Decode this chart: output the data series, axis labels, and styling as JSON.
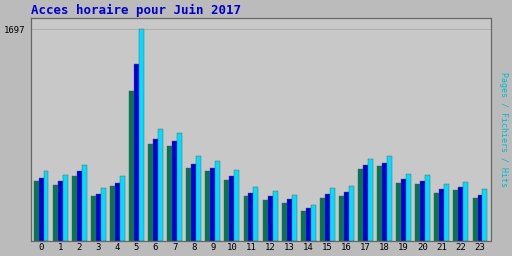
{
  "title": "Acces horaire pour Juin 2017",
  "ylabel": "Pages / Fichiers / Hits",
  "xlabel_values": [
    0,
    1,
    2,
    3,
    4,
    5,
    6,
    7,
    8,
    9,
    10,
    11,
    12,
    13,
    14,
    15,
    16,
    17,
    18,
    19,
    20,
    21,
    22,
    23
  ],
  "pages": [
    480,
    450,
    520,
    360,
    440,
    1200,
    780,
    760,
    590,
    560,
    490,
    360,
    330,
    310,
    240,
    350,
    360,
    580,
    600,
    470,
    460,
    390,
    410,
    350
  ],
  "fichiers": [
    510,
    480,
    560,
    380,
    470,
    1420,
    820,
    800,
    620,
    590,
    520,
    390,
    360,
    340,
    265,
    380,
    395,
    610,
    630,
    495,
    485,
    415,
    435,
    375
  ],
  "hits": [
    560,
    530,
    610,
    430,
    520,
    1697,
    900,
    870,
    680,
    640,
    570,
    435,
    400,
    375,
    290,
    425,
    440,
    660,
    680,
    540,
    530,
    455,
    475,
    415
  ],
  "color_pages": "#007850",
  "color_fichiers": "#0000dd",
  "color_hits": "#00ddff",
  "bg_color": "#bbbbbb",
  "plot_bg": "#c8c8c8",
  "title_color": "#0000cc",
  "ylabel_color": "#00bbcc",
  "bar_width": 0.26,
  "figsize": [
    5.12,
    2.56
  ],
  "dpi": 100
}
